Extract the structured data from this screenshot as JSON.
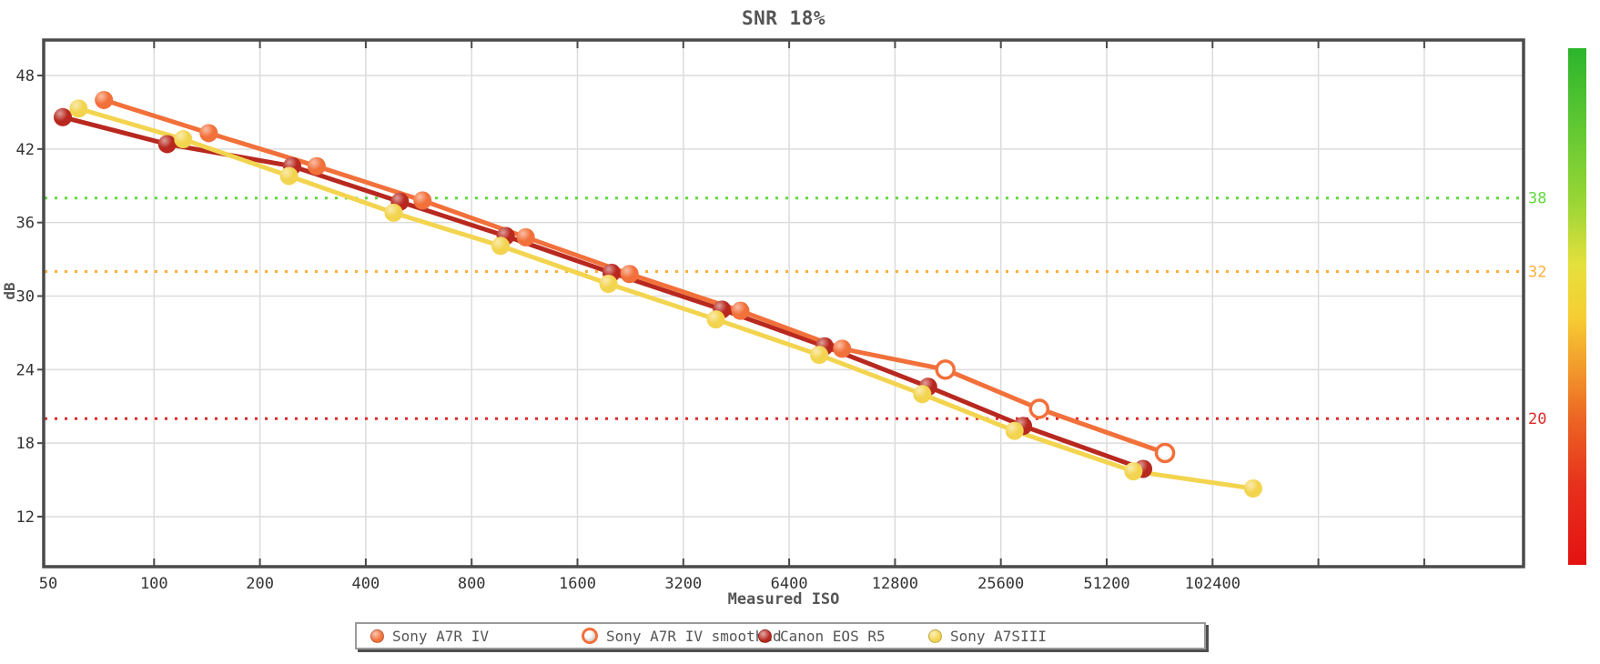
{
  "page": {
    "background": "#FFFFFF"
  },
  "chart_data": {
    "type": "line",
    "title": "SNR 18%",
    "xlabel": "Measured ISO",
    "ylabel": "dB",
    "x_scale": "log2",
    "x_ticks": [
      50,
      100,
      200,
      400,
      800,
      1600,
      3200,
      6400,
      12800,
      25600,
      51200,
      102400
    ],
    "x_extra_gridlines": [
      204800,
      409600
    ],
    "y_ticks": [
      12,
      18,
      24,
      30,
      36,
      42,
      48
    ],
    "y_axis_range": [
      8,
      50.8
    ],
    "grid_color": "#DCDCDC",
    "axis_color": "#4A4A4A",
    "title_color": "#555555",
    "tick_text_color": "#333333",
    "thresholds": [
      {
        "value": 38,
        "label": "38",
        "color": "#5FD93C"
      },
      {
        "value": 32,
        "label": "32",
        "color": "#FFAE38"
      },
      {
        "value": 20,
        "label": "20",
        "color": "#E02829"
      }
    ],
    "gradient_bar": {
      "stops": [
        [
          "0%",
          "#2CB52C"
        ],
        [
          "15%",
          "#5FC832"
        ],
        [
          "30%",
          "#9AD635"
        ],
        [
          "42%",
          "#E6E03C"
        ],
        [
          "52%",
          "#F6CE33"
        ],
        [
          "62%",
          "#F29A2B"
        ],
        [
          "72%",
          "#EC6423"
        ],
        [
          "85%",
          "#E6301C"
        ],
        [
          "100%",
          "#E41212"
        ]
      ]
    },
    "series": [
      {
        "name": "Sony A7R IV",
        "color": "#F2703A",
        "marker": "filled",
        "points": [
          [
            72,
            46.0
          ],
          [
            143,
            43.3
          ],
          [
            290,
            40.6
          ],
          [
            580,
            37.8
          ],
          [
            1140,
            34.8
          ],
          [
            2250,
            31.8
          ],
          [
            4650,
            28.8
          ],
          [
            9050,
            25.7
          ]
        ]
      },
      {
        "name": "Sony A7R IV smoothed",
        "color": "#F2703A",
        "marker": "open",
        "extends": "Sony A7R IV",
        "points": [
          [
            17800,
            24.0
          ],
          [
            32900,
            20.8
          ],
          [
            75000,
            17.2
          ]
        ]
      },
      {
        "name": "Canon EOS R5",
        "color": "#B8281F",
        "marker": "filled",
        "points": [
          [
            55,
            44.6
          ],
          [
            109,
            42.4
          ],
          [
            247,
            40.6
          ],
          [
            500,
            37.7
          ],
          [
            1000,
            34.9
          ],
          [
            2000,
            31.9
          ],
          [
            4120,
            28.9
          ],
          [
            8070,
            25.9
          ],
          [
            15900,
            22.6
          ],
          [
            29600,
            19.4
          ],
          [
            65000,
            15.9
          ]
        ]
      },
      {
        "name": "Sony A7SIII",
        "color": "#F3D44F",
        "marker": "filled",
        "points": [
          [
            61,
            45.3
          ],
          [
            121,
            42.8
          ],
          [
            242,
            39.8
          ],
          [
            480,
            36.8
          ],
          [
            967,
            34.1
          ],
          [
            1960,
            31.0
          ],
          [
            3960,
            28.1
          ],
          [
            7790,
            25.2
          ],
          [
            15300,
            22.0
          ],
          [
            28000,
            19.0
          ],
          [
            61000,
            15.7
          ],
          [
            133600,
            14.3
          ]
        ]
      }
    ],
    "legend": {
      "position": "bottom",
      "items": [
        "Sony A7R IV",
        "Sony A7R IV smoothed",
        "Canon EOS R5",
        "Sony A7SIII"
      ]
    }
  }
}
